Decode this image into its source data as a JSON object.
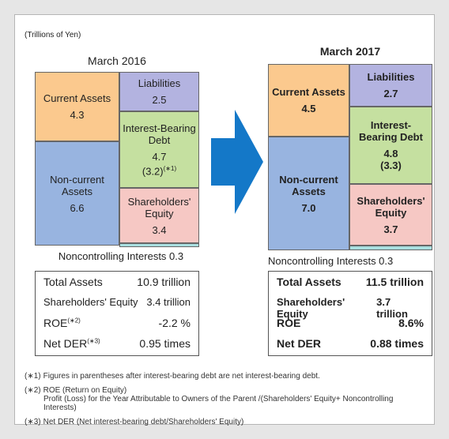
{
  "unit": "(Trillions of Yen)",
  "periods": [
    {
      "title": "March 2016",
      "current_assets": {
        "label": "Current Assets",
        "value": "4.3"
      },
      "non_current_assets": {
        "label": "Non-current Assets",
        "value": "6.6"
      },
      "liabilities": {
        "label": "Liabilities",
        "value": "2.5"
      },
      "interest_bearing_debt": {
        "label": "Interest-Bearing Debt",
        "value": "4.7",
        "net": "(3.2)",
        "note": "(∗1)"
      },
      "shareholders_equity": {
        "label": "Shareholders' Equity",
        "value": "3.4"
      },
      "noncontrolling": "Noncontrolling Interests 0.3",
      "summary": [
        {
          "label": "Total Assets",
          "value": "10.9 trillion"
        },
        {
          "label": "Shareholders' Equity",
          "value": "3.4 trillion"
        },
        {
          "label": "ROE",
          "note": "(∗2)",
          "value": "-2.2 %"
        },
        {
          "label": "Net DER",
          "note": "(∗3)",
          "value": "0.95 times"
        }
      ]
    },
    {
      "title": "March 2017",
      "current_assets": {
        "label": "Current Assets",
        "value": "4.5"
      },
      "non_current_assets": {
        "label": "Non-current Assets",
        "value": "7.0"
      },
      "liabilities": {
        "label": "Liabilities",
        "value": "2.7"
      },
      "interest_bearing_debt": {
        "label": "Interest-Bearing Debt",
        "value": "4.8",
        "net": "(3.3)"
      },
      "shareholders_equity": {
        "label": "Shareholders' Equity",
        "value": "3.7"
      },
      "noncontrolling": "Noncontrolling Interests 0.3",
      "summary": [
        {
          "label": "Total Assets",
          "value": "11.5 trillion"
        },
        {
          "label": "Shareholders' Equity",
          "value": "3.7 trillion"
        },
        {
          "label": "ROE",
          "value": "8.6%"
        },
        {
          "label": "Net DER",
          "value": "0.88 times"
        }
      ]
    }
  ],
  "footnotes": [
    {
      "mark": "(∗1)",
      "text": "Figures in parentheses after interest-bearing debt are net interest-bearing debt."
    },
    {
      "mark": "(∗2)",
      "text": "ROE (Return on Equity)",
      "detail": "Profit (Loss) for the Year Attributable to Owners of the Parent /(Shareholders' Equity+ Noncontrolling Interests)"
    },
    {
      "mark": "(∗3)",
      "text": "Net DER (Net interest-bearing debt/Shareholders' Equity)"
    }
  ]
}
